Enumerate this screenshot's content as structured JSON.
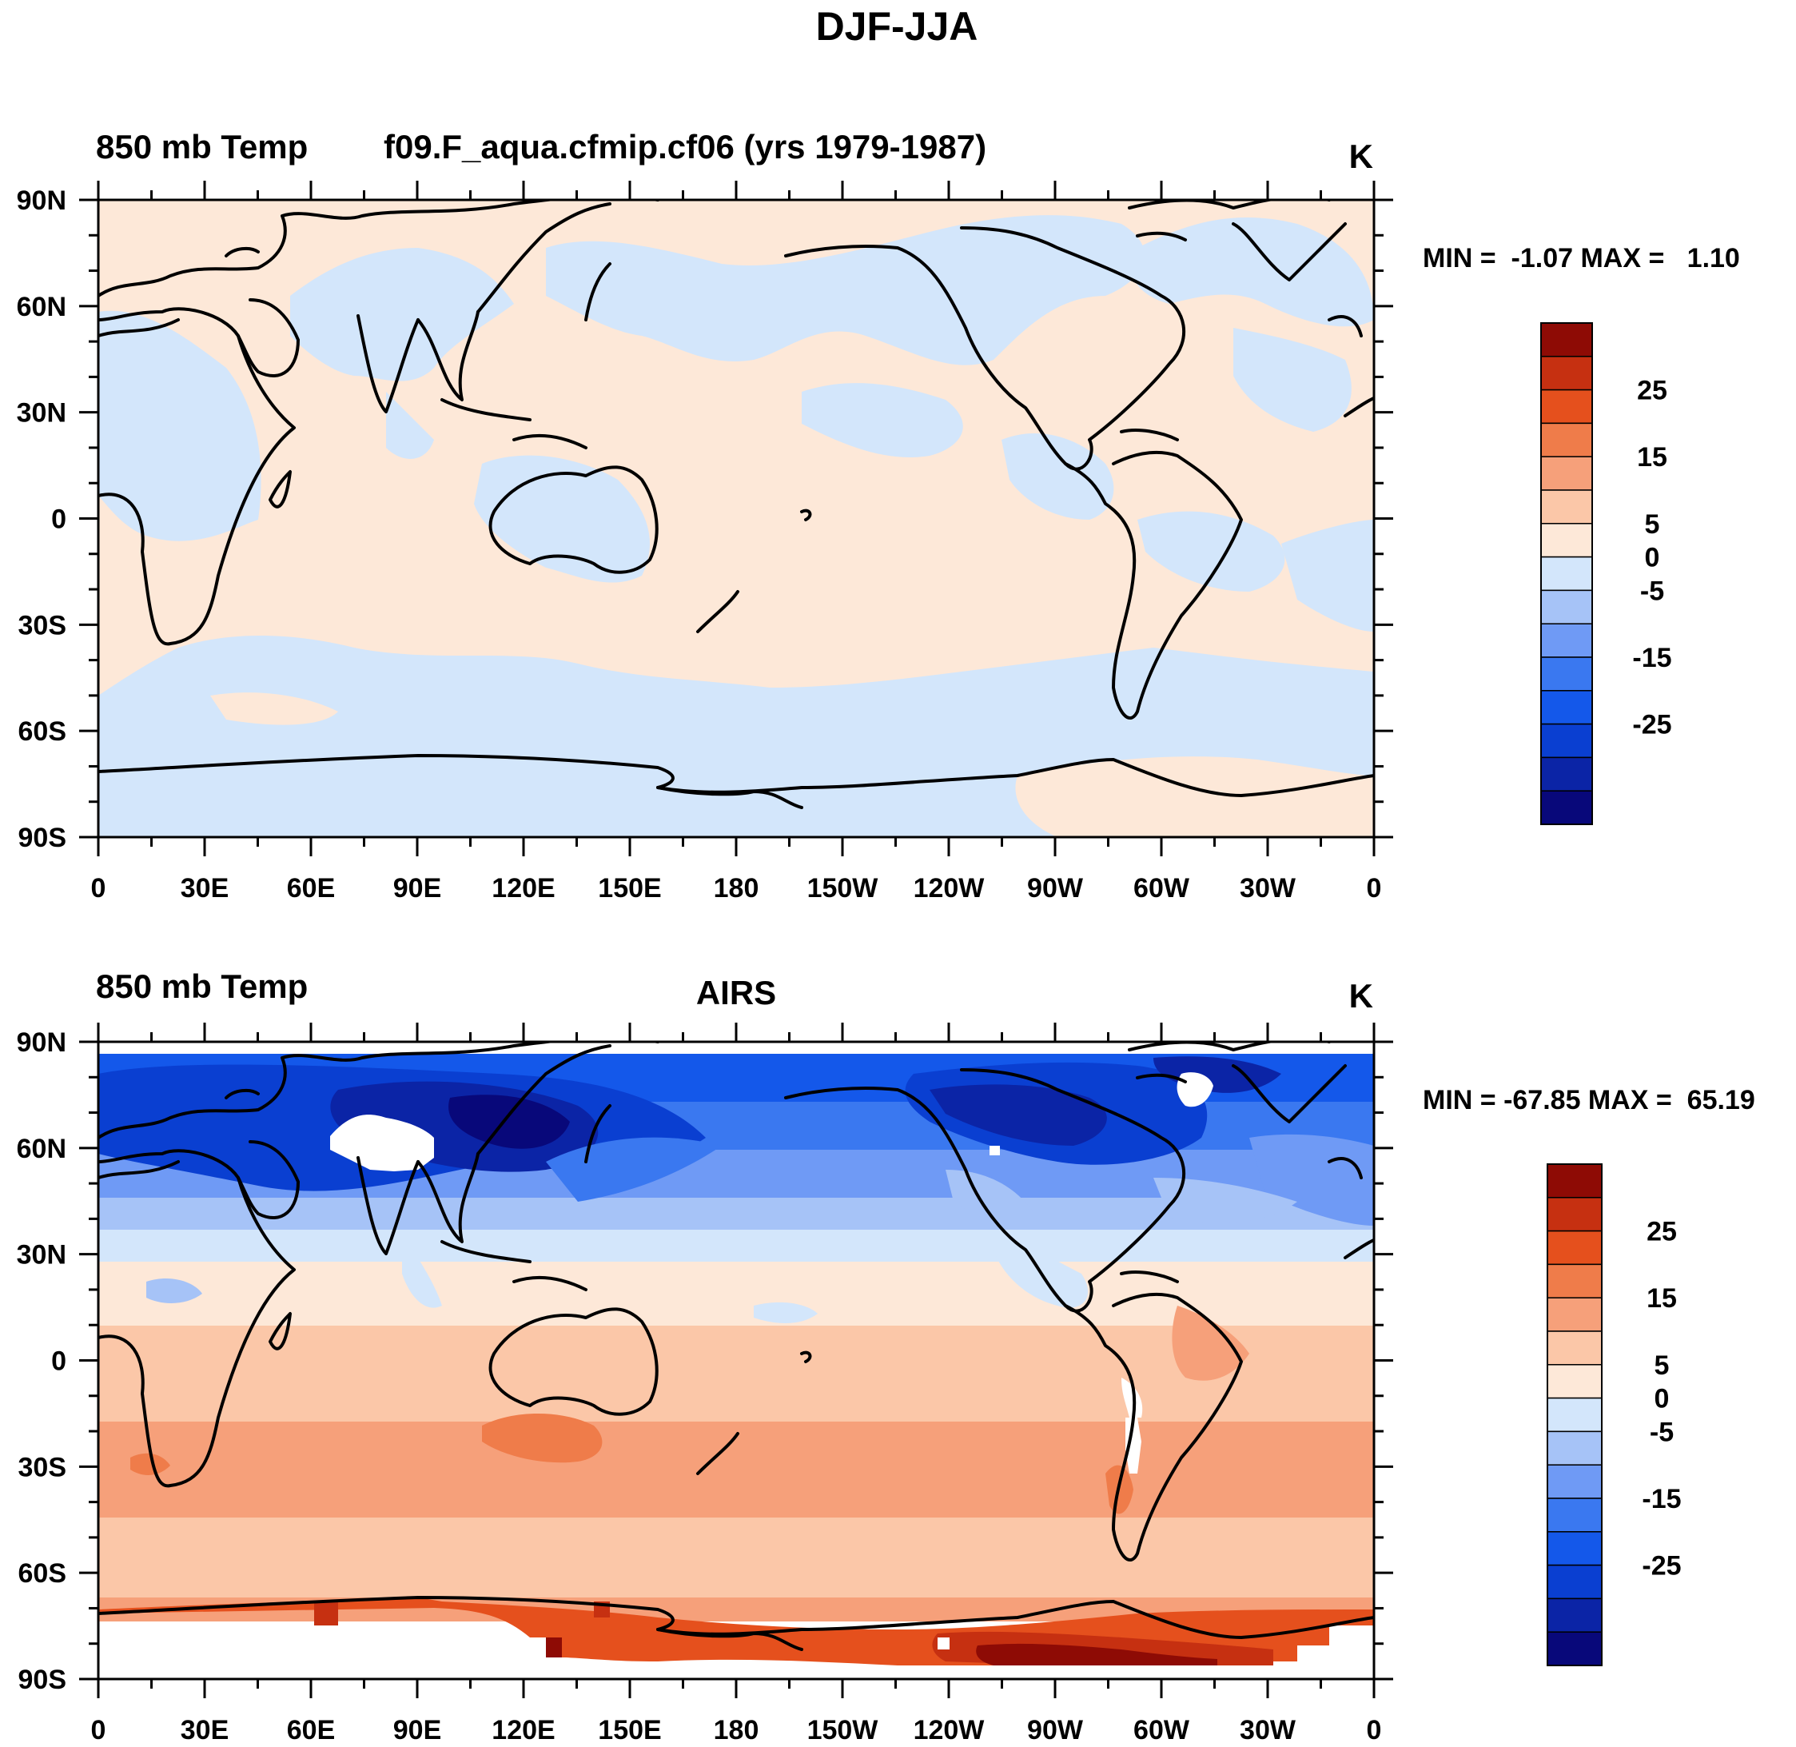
{
  "title": "DJF-JJA",
  "palette": {
    "levels": [
      -35,
      -30,
      -25,
      -20,
      -15,
      -10,
      -5,
      0,
      5,
      10,
      15,
      20,
      25,
      30,
      35
    ],
    "colors": [
      "#08087a",
      "#0b24a6",
      "#0a3fd1",
      "#1458ea",
      "#3a78f0",
      "#6f9af5",
      "#a6c3f7",
      "#d3e6fb",
      "#fde8d8",
      "#fbc7a8",
      "#f6a07a",
      "#ef7c4a",
      "#e5501d",
      "#c63011",
      "#8e0b05"
    ],
    "labels": [
      "25",
      "15",
      "5",
      "0",
      "-5",
      "-15",
      "-25"
    ]
  },
  "axes": {
    "lat_labels": [
      "90N",
      "60N",
      "30N",
      "0",
      "30S",
      "60S",
      "90S"
    ],
    "lon_labels": [
      "0",
      "30E",
      "60E",
      "90E",
      "120E",
      "150E",
      "180",
      "150W",
      "120W",
      "90W",
      "60W",
      "30W",
      "0"
    ]
  },
  "panels": [
    {
      "id": "model",
      "left_title": "850 mb Temp",
      "center_title": "f09.F_aqua.cfmip.cf06 (yrs 1979-1987)",
      "units": "K",
      "stats": "MIN =  -1.07 MAX =   1.10",
      "min": -1.07,
      "max": 1.1
    },
    {
      "id": "obs",
      "left_title": "850 mb Temp",
      "center_title": "AIRS",
      "units": "K",
      "stats": "MIN = -67.85 MAX =  65.19",
      "min": -67.85,
      "max": 65.19
    }
  ]
}
